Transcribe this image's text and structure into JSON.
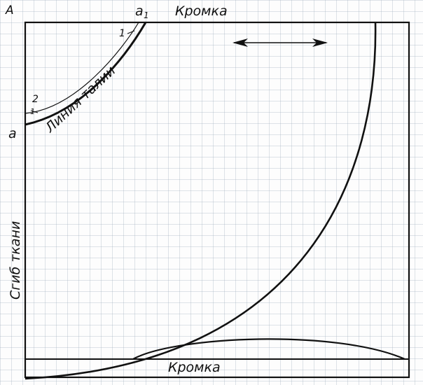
{
  "labels": {
    "corner_A": "A",
    "point_a1": "a",
    "point_a1_sub": "1",
    "point_a": "a",
    "edge_top": "Кромка",
    "edge_bottom": "Кромка",
    "fold": "Сгиб ткани",
    "waist_line": "Линия талии",
    "mark_1_top": "1",
    "mark_2": "2",
    "mark_1_left": "1"
  },
  "colors": {
    "ink": "#111111",
    "grid": "#a0afbe"
  }
}
